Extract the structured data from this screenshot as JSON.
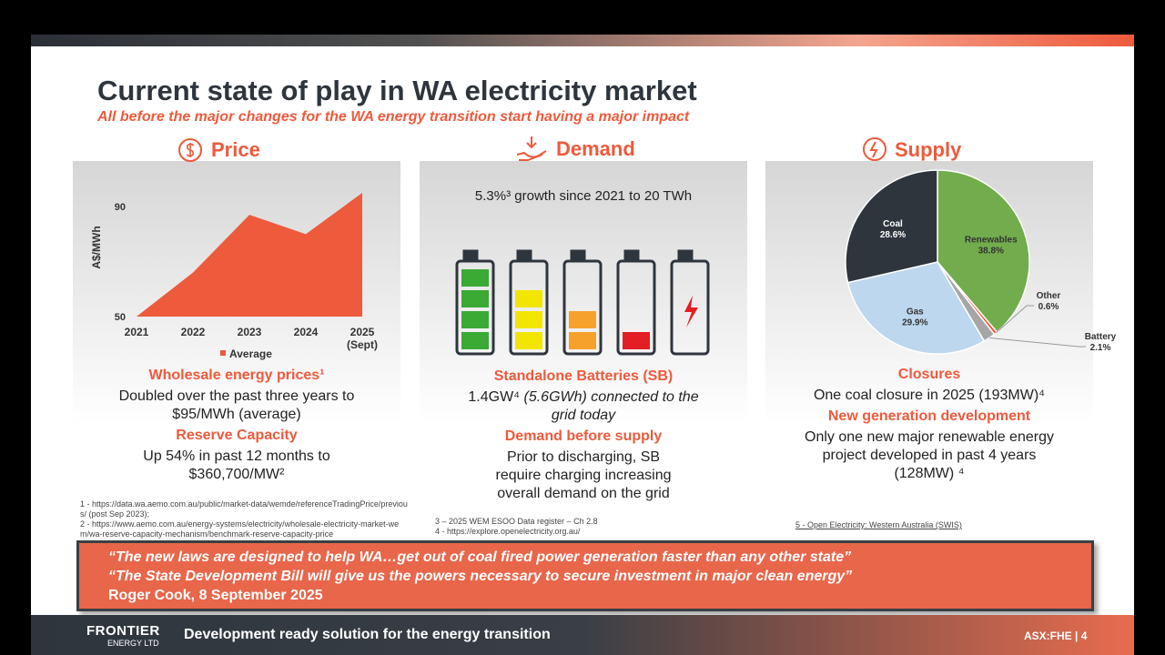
{
  "header": {
    "title": "Current state of play in WA electricity market",
    "subtitle": "All before the major changes for the WA energy transition start having a major impact"
  },
  "price": {
    "heading": "Price",
    "chart": {
      "type": "area",
      "y_label": "A$/MWh",
      "categories": [
        "2021",
        "2022",
        "2023",
        "2024",
        "2025 (Sept)"
      ],
      "series": [
        {
          "name": "Average",
          "color": "#ee5a3c",
          "values": [
            50,
            66,
            87,
            80,
            95
          ]
        }
      ],
      "ylim": [
        50,
        95
      ],
      "yticks": [
        50,
        90
      ]
    },
    "items": [
      {
        "heading": "Wholesale energy prices¹",
        "text": "Doubled over the past three years to $95/MWh (average)"
      },
      {
        "heading": "Reserve Capacity",
        "text": "Up 54% in past 12 months to $360,700/MW²"
      }
    ],
    "footnotes": [
      "1 - https://data.wa.aemo.com.au/public/market-data/wemde/referenceTradingPrice/previous/ (post Sep 2023);",
      "2 - https://www.aemo.com.au/energy-systems/electricity/wholesale-electricity-market-wem/wa-reserve-capacity-mechanism/benchmark-reserve-capacity-price"
    ]
  },
  "demand": {
    "heading": "Demand",
    "growth": "5.3%³ growth since 2021 to 20 TWh",
    "items": [
      {
        "heading": "Standalone Batteries (SB)",
        "text": "1.4GW⁴",
        "text_italic": "(5.6GWh) connected to the grid today"
      },
      {
        "heading": "Demand before supply",
        "text": "Prior to discharging, SB require charging increasing overall demand on the grid"
      }
    ],
    "footnotes": [
      "3 – 2025 WEM ESOO Data register – Ch 2.8",
      "4 - https://explore.openelectricity.org.au/"
    ]
  },
  "supply": {
    "heading": "Supply",
    "chart": {
      "type": "pie",
      "categories": [
        "Renewables",
        "Other",
        "Battery",
        "Gas",
        "Coal"
      ],
      "values": [
        38.8,
        0.6,
        2.1,
        29.9,
        28.6
      ],
      "value_labels": [
        "38.8%",
        "0.6%",
        "2.1%",
        "29.9%",
        "28.6%"
      ],
      "colors": [
        "#72ac4d",
        "#ee5a3c",
        "#a6a6a6",
        "#bdd7ee",
        "#2e353d"
      ]
    },
    "items": [
      {
        "heading": "Closures",
        "text": "One coal closure in 2025 (193MW)⁴"
      },
      {
        "heading": "New generation development",
        "text": "Only one new major renewable energy project developed in past 4 years (128MW) ⁴"
      }
    ],
    "footnotes": [
      "5 - Open Electricity: Western Australia (SWIS)"
    ]
  },
  "quote": {
    "lines": [
      "“The new laws are designed to help WA…get out of coal fired power generation faster than any other state”",
      "“The State Development Bill will give us the powers necessary to secure investment in major clean energy”",
      "Roger Cook, 8 September 2025"
    ]
  },
  "footer": {
    "logo_top": "FRONTIER",
    "logo_bottom": "ENERGY LTD",
    "tagline": "Development ready solution for the energy transition",
    "ticker": "ASX:FHE | 4"
  }
}
